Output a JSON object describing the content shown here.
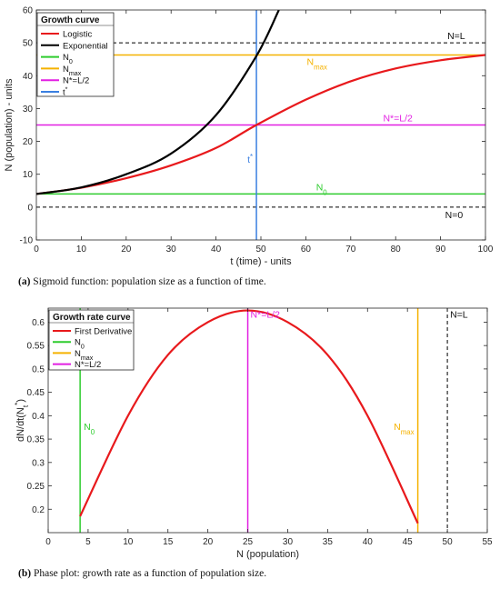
{
  "captions": [
    {
      "tag": "(a)",
      "text": "Sigmoid function: population size as a function of time."
    },
    {
      "tag": "(b)",
      "text": "Phase plot: growth rate as a function of population size."
    }
  ],
  "chart_data": [
    {
      "type": "line",
      "title": "",
      "xlabel": "t (time) - units",
      "ylabel": "N (population) - units",
      "xlim": [
        0,
        100
      ],
      "ylim": [
        -10,
        60
      ],
      "xticks": [
        0,
        10,
        20,
        30,
        40,
        50,
        60,
        70,
        80,
        90,
        100
      ],
      "yticks": [
        -10,
        0,
        10,
        20,
        30,
        40,
        50,
        60
      ],
      "grid": false,
      "legend": {
        "title": "Growth curve",
        "position": "top-left",
        "entries": [
          {
            "label": "Logistic",
            "color": "#e8191c"
          },
          {
            "label": "Exponential",
            "color": "#000000"
          },
          {
            "label": "N",
            "sub": "0",
            "color": "#2ecc2e"
          },
          {
            "label": "N",
            "sub": "max",
            "color": "#f5b200"
          },
          {
            "label": "N*=L/2",
            "color": "#e21fe2"
          },
          {
            "label": "t",
            "sup": "*",
            "color": "#3a7fe0"
          }
        ]
      },
      "params": {
        "L": 50,
        "N0": 4,
        "Nmax": 46.3,
        "Nhalf": 25,
        "tstar": 49
      },
      "series": [
        {
          "name": "Logistic",
          "color": "#e8191c",
          "x": [
            0,
            10,
            20,
            30,
            40,
            49,
            60,
            70,
            80,
            90,
            100
          ],
          "y": [
            4,
            5.9,
            8.8,
            12.7,
            18.0,
            25.0,
            32.7,
            38.3,
            42.2,
            44.7,
            46.3
          ]
        },
        {
          "name": "Exponential",
          "color": "#000000",
          "x": [
            0,
            10,
            20,
            30,
            40,
            49,
            54
          ],
          "y": [
            4,
            6.0,
            10.0,
            16.3,
            28.0,
            46.0,
            60.0
          ]
        }
      ],
      "hlines": [
        {
          "y": 50,
          "style": "dashed",
          "color": "#000000",
          "label": "N=L"
        },
        {
          "y": 46.3,
          "style": "solid",
          "color": "#f5b200",
          "label": "N",
          "sub": "max"
        },
        {
          "y": 25,
          "style": "solid",
          "color": "#e21fe2",
          "label": "N*=L/2"
        },
        {
          "y": 4,
          "style": "solid",
          "color": "#2ecc2e",
          "label": "N",
          "sub": "0"
        },
        {
          "y": 0,
          "style": "dashed",
          "color": "#000000",
          "label": "N=0"
        }
      ],
      "vlines": [
        {
          "x": 49,
          "style": "solid",
          "color": "#3a7fe0",
          "label": "t",
          "sup": "*"
        }
      ]
    },
    {
      "type": "line",
      "title": "",
      "xlabel": "N (population)",
      "ylabel": "dN/dt(N_t*)",
      "ylabel_parts": {
        "main": "dN/dt(N",
        "sub": "t",
        "sup": "*",
        "close": ")"
      },
      "xlim": [
        0,
        55
      ],
      "ylim": [
        0.15,
        0.63
      ],
      "xticks": [
        0,
        5,
        10,
        15,
        20,
        25,
        30,
        35,
        40,
        45,
        50,
        55
      ],
      "yticks": [
        0.2,
        0.25,
        0.3,
        0.35,
        0.4,
        0.45,
        0.5,
        0.55,
        0.6
      ],
      "ytick_labels": [
        "0.2",
        "0.25",
        "0.3",
        "0.35",
        "0.4",
        "0.45",
        "0.5",
        "0.55",
        "0.6"
      ],
      "grid": false,
      "legend": {
        "title": "Growth rate curve",
        "position": "top-left",
        "entries": [
          {
            "label": "First Derivative",
            "color": "#e8191c"
          },
          {
            "label": "N",
            "sub": "0",
            "color": "#2ecc2e"
          },
          {
            "label": "N",
            "sub": "max",
            "color": "#f5b200"
          },
          {
            "label": "N*=L/2",
            "color": "#e21fe2"
          }
        ]
      },
      "series": [
        {
          "name": "First Derivative",
          "color": "#e8191c",
          "x": [
            4,
            10,
            15,
            20,
            25,
            30,
            35,
            40,
            46.3
          ],
          "y": [
            0.185,
            0.4,
            0.53,
            0.6,
            0.625,
            0.6,
            0.53,
            0.4,
            0.17
          ]
        }
      ],
      "vlines": [
        {
          "x": 4,
          "style": "solid",
          "color": "#2ecc2e",
          "label": "N",
          "sub": "0"
        },
        {
          "x": 25,
          "style": "solid",
          "color": "#e21fe2",
          "label": "N*=L/2"
        },
        {
          "x": 46.3,
          "style": "solid",
          "color": "#f5b200",
          "label": "N",
          "sub": "max"
        },
        {
          "x": 50,
          "style": "dashed",
          "color": "#000000",
          "label": "N=L"
        }
      ]
    }
  ]
}
